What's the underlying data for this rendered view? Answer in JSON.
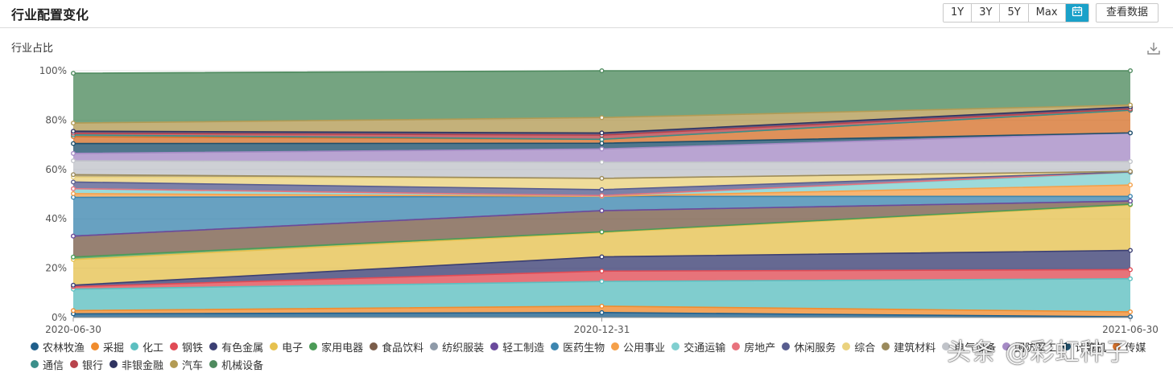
{
  "header": {
    "title": "行业配置变化",
    "ranges": [
      "1Y",
      "3Y",
      "5Y",
      "Max"
    ],
    "calendar_icon": "calendar-icon",
    "view_data_label": "查看数据"
  },
  "subtitle": "行业占比",
  "download_icon": "download-icon",
  "watermark": "头条 @彩虹种子",
  "chart_data": {
    "type": "area",
    "stacked": true,
    "x": [
      "2020-06-30",
      "2020-12-31",
      "2021-06-30"
    ],
    "yticks": [
      "0%",
      "20%",
      "40%",
      "60%",
      "80%",
      "100%"
    ],
    "ylim": [
      0,
      100
    ],
    "grid": true,
    "legend_position": "bottom",
    "series": [
      {
        "name": "农林牧渔",
        "color": "#1f5f8b",
        "values": [
          1.5,
          2.0,
          0.3
        ]
      },
      {
        "name": "采掘",
        "color": "#f08c2e",
        "values": [
          1.3,
          2.6,
          2.0
        ]
      },
      {
        "name": "化工",
        "color": "#5cbfc0",
        "values": [
          8.7,
          10.0,
          13.4
        ]
      },
      {
        "name": "钢铁",
        "color": "#e04b55",
        "values": [
          1.0,
          4.2,
          3.7
        ]
      },
      {
        "name": "有色金属",
        "color": "#3b3f73",
        "values": [
          0.6,
          5.8,
          7.8
        ]
      },
      {
        "name": "电子",
        "color": "#e6c14f",
        "values": [
          10.4,
          9.8,
          18.4
        ]
      },
      {
        "name": "家用电器",
        "color": "#4b9b57",
        "values": [
          1.0,
          0.3,
          0.3
        ]
      },
      {
        "name": "食品饮料",
        "color": "#7a5d4a",
        "values": [
          8.5,
          8.6,
          1.3
        ]
      },
      {
        "name": "纺织服装",
        "color": "#8e9aa8",
        "values": [
          0.0,
          0.0,
          0.0
        ]
      },
      {
        "name": "轻工制造",
        "color": "#6a4a9c",
        "values": [
          0.0,
          0.0,
          0.0
        ]
      },
      {
        "name": "医药生物",
        "color": "#3d86b0",
        "values": [
          15.7,
          5.8,
          1.9
        ]
      },
      {
        "name": "公用事业",
        "color": "#f5a04a",
        "values": [
          1.5,
          0.0,
          4.6
        ]
      },
      {
        "name": "交通运输",
        "color": "#80cfd0",
        "values": [
          2.0,
          0.2,
          5.0
        ]
      },
      {
        "name": "房地产",
        "color": "#e8737d",
        "values": [
          0.0,
          0.1,
          0.3
        ]
      },
      {
        "name": "休闲服务",
        "color": "#585d8f",
        "values": [
          2.7,
          2.4,
          0.0
        ]
      },
      {
        "name": "综合",
        "color": "#ead27e",
        "values": [
          2.0,
          4.6,
          0.2
        ]
      },
      {
        "name": "建筑材料",
        "color": "#9a8a5c",
        "values": [
          1.0,
          0.0,
          0.0
        ]
      },
      {
        "name": "电气设备",
        "color": "#c0c3c9",
        "values": [
          5.6,
          6.5,
          4.0
        ]
      },
      {
        "name": "国防军工",
        "color": "#a58ac5",
        "values": [
          3.0,
          5.4,
          11.6
        ]
      },
      {
        "name": "计算机",
        "color": "#1d4f6b",
        "values": [
          4.0,
          2.3,
          0.0
        ]
      },
      {
        "name": "传媒",
        "color": "#d6722c",
        "values": [
          2.8,
          1.6,
          9.2
        ]
      },
      {
        "name": "通信",
        "color": "#3b8f8a",
        "values": [
          0.7,
          0.0,
          0.0
        ]
      },
      {
        "name": "银行",
        "color": "#b8434c",
        "values": [
          0.7,
          1.7,
          0.5
        ]
      },
      {
        "name": "非银金融",
        "color": "#2f3360",
        "values": [
          0.8,
          0.9,
          0.8
        ]
      },
      {
        "name": "汽车",
        "color": "#b39b54",
        "values": [
          3.3,
          6.2,
          0.8
        ]
      },
      {
        "name": "机械设备",
        "color": "#4e8a5e",
        "values": [
          20.2,
          19.0,
          13.9
        ]
      }
    ]
  }
}
